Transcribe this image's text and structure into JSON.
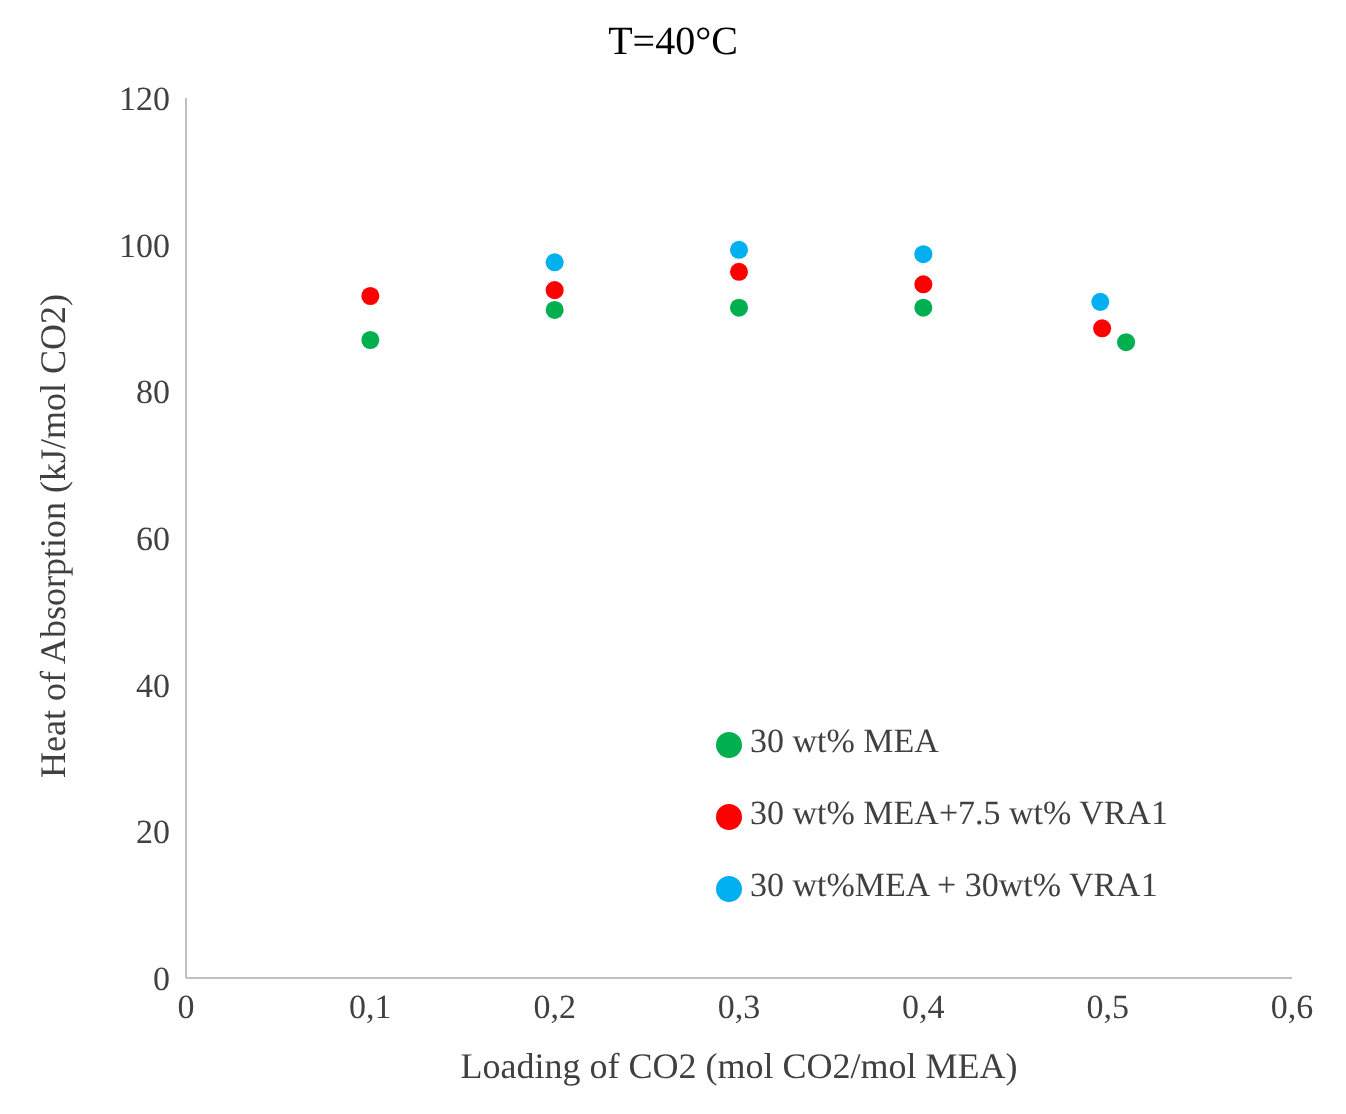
{
  "chart_data": {
    "type": "scatter",
    "title": "T=40°C",
    "xlabel": "Loading of CO2 (mol CO2/mol MEA)",
    "ylabel": "Heat of Absorption (kJ/mol CO2)",
    "xlim": [
      0,
      0.6
    ],
    "xticks": [
      0,
      {
        "value": 0.1,
        "label": "0,1"
      },
      {
        "value": 0.2,
        "label": "0,2"
      },
      {
        "value": 0.3,
        "label": "0,3"
      },
      {
        "value": 0.4,
        "label": "0,4"
      },
      {
        "value": 0.5,
        "label": "0,5"
      },
      {
        "value": 0.6,
        "label": "0,6"
      }
    ],
    "ylim": [
      0,
      120
    ],
    "yticks": [
      0,
      20,
      40,
      60,
      80,
      100,
      120
    ],
    "grid": false,
    "legend": "bottom right",
    "marker": "circle",
    "series": [
      {
        "name": "30 wt% MEA",
        "color": "#00b050",
        "x": [
          0.1,
          0.2,
          0.3,
          0.4,
          0.51
        ],
        "values": [
          87.0,
          91.1,
          91.4,
          91.4,
          86.7
        ]
      },
      {
        "name": "30 wt% MEA+7.5 wt% VRA1",
        "color": "#ff0000",
        "x": [
          0.1,
          0.2,
          0.3,
          0.4,
          0.497
        ],
        "values": [
          93.0,
          93.8,
          96.3,
          94.6,
          88.6
        ]
      },
      {
        "name": "30 wt%MEA + 30wt% VRA1",
        "color": "#00b0f0",
        "x": [
          0.2,
          0.3,
          0.4,
          0.496
        ],
        "values": [
          97.6,
          99.3,
          98.7,
          92.2
        ]
      }
    ]
  }
}
